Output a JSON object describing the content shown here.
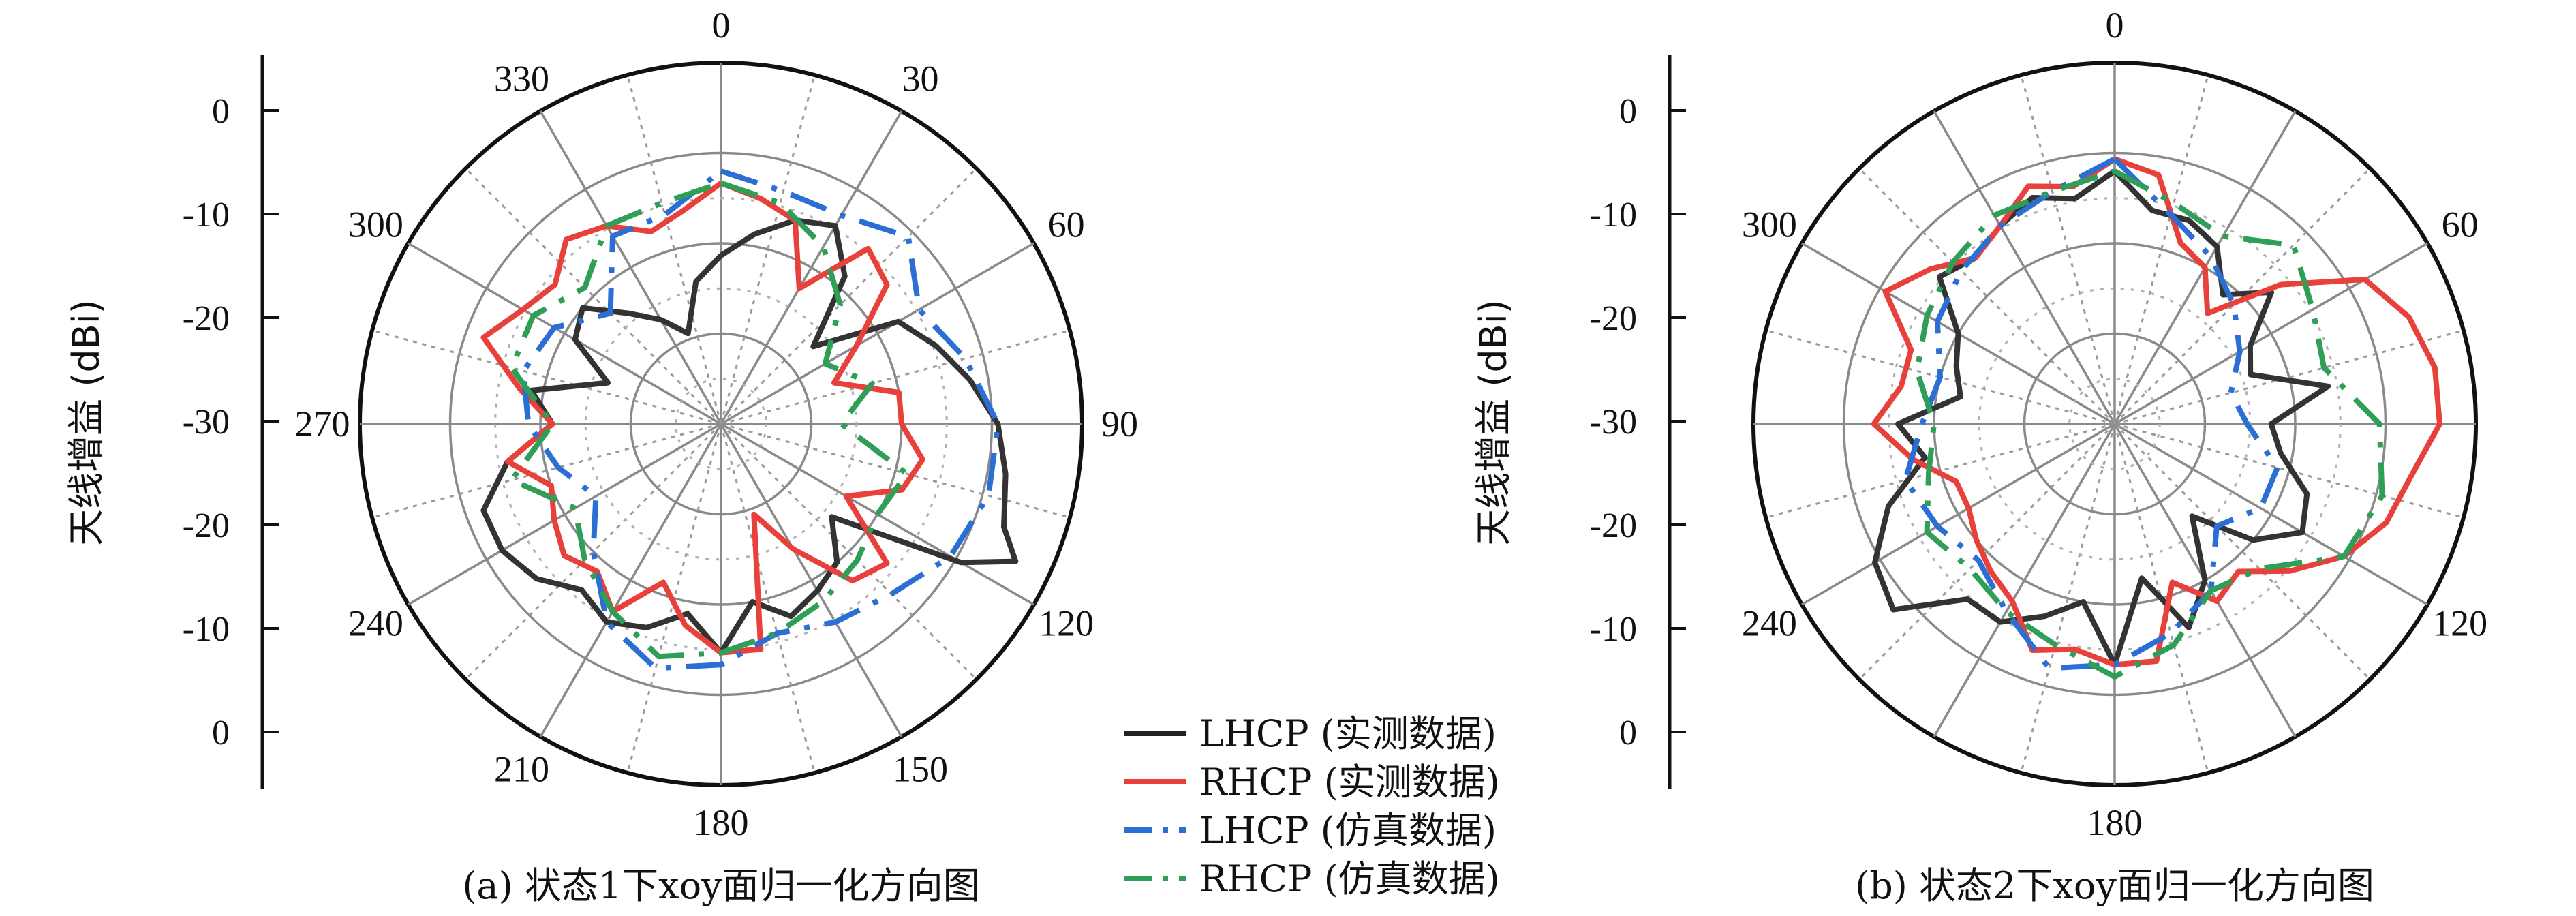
{
  "chart_data": [
    {
      "type": "polar-line",
      "caption": "(a) 状态1下xoy面归一化方向图",
      "ylabel": "天线增益 (dBi)",
      "r_ticks": [
        "0",
        "-10",
        "-20",
        "-30",
        "-20",
        "-10",
        "0"
      ],
      "r_range": [
        -30,
        0
      ],
      "angle_labels": [
        "0",
        "30",
        "60",
        "90",
        "120",
        "150",
        "180",
        "210",
        "240",
        "270",
        "300",
        "330"
      ],
      "angle_unit": "deg",
      "series": [
        {
          "name": "LHCP (实测数据)",
          "color": "#333333",
          "dash": "solid",
          "points": [
            [
              0,
              -16
            ],
            [
              10,
              -14
            ],
            [
              20,
              -12
            ],
            [
              30,
              -11
            ],
            [
              40,
              -14
            ],
            [
              50,
              -20
            ],
            [
              60,
              -13
            ],
            [
              70,
              -11
            ],
            [
              80,
              -9
            ],
            [
              90,
              -7
            ],
            [
              100,
              -6
            ],
            [
              110,
              -5
            ],
            [
              115,
              -3
            ],
            [
              120,
              -7
            ],
            [
              130,
              -18
            ],
            [
              140,
              -15
            ],
            [
              150,
              -14
            ],
            [
              160,
              -13
            ],
            [
              170,
              -15
            ],
            [
              180,
              -11
            ],
            [
              190,
              -14
            ],
            [
              200,
              -12
            ],
            [
              210,
              -11
            ],
            [
              220,
              -12
            ],
            [
              230,
              -10
            ],
            [
              240,
              -9
            ],
            [
              250,
              -9
            ],
            [
              260,
              -12
            ],
            [
              270,
              -16
            ],
            [
              280,
              -14
            ],
            [
              290,
              -20
            ],
            [
              300,
              -16
            ],
            [
              310,
              -15
            ],
            [
              320,
              -18
            ],
            [
              330,
              -20
            ],
            [
              340,
              -22
            ],
            [
              350,
              -18
            ],
            [
              360,
              -16
            ]
          ]
        },
        {
          "name": "RHCP (实测数据)",
          "color": "#e8403a",
          "dash": "solid",
          "points": [
            [
              0,
              -10
            ],
            [
              10,
              -11
            ],
            [
              20,
              -12
            ],
            [
              30,
              -17
            ],
            [
              40,
              -11
            ],
            [
              50,
              -12
            ],
            [
              60,
              -17
            ],
            [
              70,
              -20
            ],
            [
              80,
              -15
            ],
            [
              90,
              -15
            ],
            [
              100,
              -13
            ],
            [
              110,
              -14
            ],
            [
              120,
              -18
            ],
            [
              130,
              -12
            ],
            [
              140,
              -13
            ],
            [
              150,
              -18
            ],
            [
              160,
              -22
            ],
            [
              170,
              -11
            ],
            [
              180,
              -11
            ],
            [
              190,
              -13
            ],
            [
              200,
              -16
            ],
            [
              210,
              -12
            ],
            [
              220,
              -14
            ],
            [
              230,
              -13
            ],
            [
              240,
              -14
            ],
            [
              250,
              -15
            ],
            [
              260,
              -12
            ],
            [
              270,
              -16
            ],
            [
              280,
              -13
            ],
            [
              290,
              -9
            ],
            [
              300,
              -11
            ],
            [
              310,
              -12
            ],
            [
              320,
              -10
            ],
            [
              330,
              -11
            ],
            [
              340,
              -13
            ],
            [
              350,
              -12
            ],
            [
              360,
              -10
            ]
          ]
        },
        {
          "name": "LHCP (仿真数据)",
          "color": "#2b6fd4",
          "dash": "dashdot",
          "points": [
            [
              0,
              -9
            ],
            [
              15,
              -10
            ],
            [
              30,
              -10
            ],
            [
              45,
              -8
            ],
            [
              60,
              -11
            ],
            [
              75,
              -9
            ],
            [
              90,
              -7
            ],
            [
              105,
              -7
            ],
            [
              120,
              -8
            ],
            [
              135,
              -10
            ],
            [
              150,
              -11
            ],
            [
              165,
              -12
            ],
            [
              180,
              -10
            ],
            [
              195,
              -9
            ],
            [
              210,
              -11
            ],
            [
              225,
              -15
            ],
            [
              240,
              -18
            ],
            [
              255,
              -16
            ],
            [
              270,
              -14
            ],
            [
              285,
              -13
            ],
            [
              300,
              -14
            ],
            [
              315,
              -17
            ],
            [
              330,
              -12
            ],
            [
              345,
              -12
            ],
            [
              360,
              -9
            ]
          ]
        },
        {
          "name": "RHCP (仿真数据)",
          "color": "#2f9e57",
          "dash": "dashdot",
          "points": [
            [
              0,
              -10
            ],
            [
              15,
              -11
            ],
            [
              30,
              -13
            ],
            [
              45,
              -16
            ],
            [
              60,
              -20
            ],
            [
              75,
              -17
            ],
            [
              90,
              -20
            ],
            [
              105,
              -14
            ],
            [
              120,
              -15
            ],
            [
              135,
              -14
            ],
            [
              150,
              -13
            ],
            [
              165,
              -12
            ],
            [
              180,
              -11
            ],
            [
              195,
              -10
            ],
            [
              210,
              -12
            ],
            [
              225,
              -14
            ],
            [
              240,
              -16
            ],
            [
              255,
              -12
            ],
            [
              270,
              -16
            ],
            [
              285,
              -12
            ],
            [
              300,
              -12
            ],
            [
              315,
              -14
            ],
            [
              330,
              -11
            ],
            [
              345,
              -11
            ],
            [
              360,
              -10
            ]
          ]
        }
      ]
    },
    {
      "type": "polar-line",
      "caption": "(b) 状态2下xoy面归一化方向图",
      "ylabel": "天线增益 (dBi)",
      "r_ticks": [
        "0",
        "-10",
        "-20",
        "-30",
        "-20",
        "-10",
        "0"
      ],
      "r_range": [
        -30,
        0
      ],
      "angle_labels": [
        "0",
        "60",
        "120",
        "180",
        "240",
        "300"
      ],
      "angle_unit": "deg",
      "series": [
        {
          "name": "LHCP (实测数据)",
          "color": "#333333",
          "dash": "solid",
          "points": [
            [
              0,
              -9
            ],
            [
              10,
              -12
            ],
            [
              20,
              -12
            ],
            [
              30,
              -13
            ],
            [
              40,
              -16
            ],
            [
              50,
              -13
            ],
            [
              60,
              -17
            ],
            [
              70,
              -18
            ],
            [
              80,
              -12
            ],
            [
              90,
              -17
            ],
            [
              100,
              -16
            ],
            [
              110,
              -13
            ],
            [
              120,
              -12
            ],
            [
              130,
              -15
            ],
            [
              140,
              -20
            ],
            [
              150,
              -15
            ],
            [
              160,
              -12
            ],
            [
              170,
              -17
            ],
            [
              180,
              -10
            ],
            [
              190,
              -15
            ],
            [
              200,
              -13
            ],
            [
              210,
              -11
            ],
            [
              220,
              -11
            ],
            [
              230,
              -6
            ],
            [
              240,
              -7
            ],
            [
              250,
              -10
            ],
            [
              260,
              -14
            ],
            [
              270,
              -12
            ],
            [
              280,
              -17
            ],
            [
              290,
              -16
            ],
            [
              300,
              -15
            ],
            [
              310,
              -11
            ],
            [
              320,
              -12
            ],
            [
              330,
              -11
            ],
            [
              340,
              -10
            ],
            [
              350,
              -11
            ],
            [
              360,
              -9
            ]
          ]
        },
        {
          "name": "RHCP (实测数据)",
          "color": "#e8403a",
          "dash": "solid",
          "points": [
            [
              0,
              -8
            ],
            [
              10,
              -9
            ],
            [
              20,
              -14
            ],
            [
              30,
              -15
            ],
            [
              40,
              -18
            ],
            [
              50,
              -12
            ],
            [
              60,
              -6
            ],
            [
              70,
              -4
            ],
            [
              80,
              -3
            ],
            [
              90,
              -3
            ],
            [
              100,
              -5
            ],
            [
              110,
              -6
            ],
            [
              120,
              -8
            ],
            [
              130,
              -11
            ],
            [
              140,
              -14
            ],
            [
              150,
              -13
            ],
            [
              160,
              -16
            ],
            [
              170,
              -10
            ],
            [
              180,
              -10
            ],
            [
              190,
              -11
            ],
            [
              200,
              -10
            ],
            [
              210,
              -13
            ],
            [
              220,
              -14
            ],
            [
              230,
              -15
            ],
            [
              240,
              -16
            ],
            [
              250,
              -16
            ],
            [
              260,
              -13
            ],
            [
              270,
              -10
            ],
            [
              280,
              -12
            ],
            [
              290,
              -12
            ],
            [
              300,
              -8
            ],
            [
              310,
              -10
            ],
            [
              320,
              -12
            ],
            [
              330,
              -11
            ],
            [
              340,
              -9
            ],
            [
              350,
              -10
            ],
            [
              360,
              -8
            ]
          ]
        },
        {
          "name": "LHCP (仿真数据)",
          "color": "#2b6fd4",
          "dash": "dashdot",
          "points": [
            [
              0,
              -8
            ],
            [
              15,
              -12
            ],
            [
              30,
              -14
            ],
            [
              45,
              -16
            ],
            [
              60,
              -18
            ],
            [
              75,
              -20
            ],
            [
              90,
              -19
            ],
            [
              105,
              -16
            ],
            [
              120,
              -16
            ],
            [
              135,
              -18
            ],
            [
              150,
              -14
            ],
            [
              165,
              -12
            ],
            [
              180,
              -10
            ],
            [
              195,
              -9
            ],
            [
              210,
              -12
            ],
            [
              225,
              -14
            ],
            [
              240,
              -13
            ],
            [
              255,
              -12
            ],
            [
              270,
              -14
            ],
            [
              285,
              -15
            ],
            [
              300,
              -13
            ],
            [
              315,
              -12
            ],
            [
              330,
              -11
            ],
            [
              345,
              -10
            ],
            [
              360,
              -8
            ]
          ]
        },
        {
          "name": "RHCP (仿真数据)",
          "color": "#2f9e57",
          "dash": "dashdot",
          "points": [
            [
              0,
              -9
            ],
            [
              15,
              -11
            ],
            [
              30,
              -12
            ],
            [
              45,
              -9
            ],
            [
              60,
              -11
            ],
            [
              75,
              -12
            ],
            [
              90,
              -8
            ],
            [
              105,
              -7
            ],
            [
              120,
              -8
            ],
            [
              135,
              -13
            ],
            [
              150,
              -14
            ],
            [
              165,
              -11
            ],
            [
              180,
              -9
            ],
            [
              195,
              -11
            ],
            [
              210,
              -12
            ],
            [
              225,
              -13
            ],
            [
              240,
              -12
            ],
            [
              255,
              -14
            ],
            [
              270,
              -15
            ],
            [
              285,
              -13
            ],
            [
              300,
              -12
            ],
            [
              315,
              -11
            ],
            [
              330,
              -10
            ],
            [
              345,
              -10
            ],
            [
              360,
              -9
            ]
          ]
        }
      ]
    }
  ],
  "legend": [
    {
      "label": "LHCP (实测数据)",
      "color": "#222222",
      "dash": "solid"
    },
    {
      "label": "RHCP (实测数据)",
      "color": "#e8403a",
      "dash": "solid"
    },
    {
      "label": "LHCP (仿真数据)",
      "color": "#2b6fd4",
      "dash": "dashdot"
    },
    {
      "label": "RHCP (仿真数据)",
      "color": "#2f9e57",
      "dash": "dashdot"
    }
  ]
}
